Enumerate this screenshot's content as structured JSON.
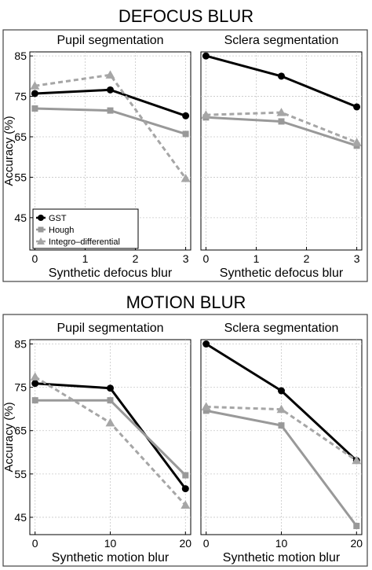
{
  "colors": {
    "gst": "#000000",
    "hough": "#999999",
    "integro": "#a6a6a6",
    "grid": "#c8c8c8",
    "frame": "#000000"
  },
  "legend": {
    "placement": "lower-left of the first panel",
    "entries": [
      "GST",
      "Hough",
      "Integro–differential"
    ]
  },
  "chart_data": [
    {
      "type": "line",
      "section_title": "DEFOCUS BLUR",
      "title": "Pupil segmentation",
      "xlabel": "Synthetic defocus blur",
      "ylabel": "Accuracy (%)",
      "x": [
        0,
        1.5,
        3
      ],
      "xticks": [
        "0",
        "1",
        "2",
        "3"
      ],
      "yticks": [
        "45",
        "55",
        "65",
        "75",
        "85"
      ],
      "xlim": [
        -0.1,
        3.1
      ],
      "ylim": [
        37,
        86
      ],
      "grid": true,
      "series": [
        {
          "name": "GST",
          "values": [
            75.7,
            76.6,
            70.2
          ],
          "marker": "circle",
          "dashed": false
        },
        {
          "name": "Hough",
          "values": [
            72,
            71.5,
            65.7
          ],
          "marker": "square",
          "dashed": false
        },
        {
          "name": "Integro–differential",
          "values": [
            77.6,
            80.3,
            54.7
          ],
          "marker": "triangle",
          "dashed": true
        }
      ]
    },
    {
      "type": "line",
      "section_title": "DEFOCUS BLUR",
      "title": "Sclera segmentation",
      "xlabel": "Synthetic defocus blur",
      "ylabel": "",
      "x": [
        0,
        1.5,
        3
      ],
      "xticks": [
        "0",
        "1",
        "2",
        "3"
      ],
      "yticks": [],
      "xlim": [
        -0.1,
        3.1
      ],
      "ylim": [
        37,
        86
      ],
      "grid": true,
      "series": [
        {
          "name": "GST",
          "values": [
            85,
            80,
            72.4
          ],
          "marker": "circle",
          "dashed": false
        },
        {
          "name": "Hough",
          "values": [
            69.8,
            68.8,
            62.8
          ],
          "marker": "square",
          "dashed": false
        },
        {
          "name": "Integro–differential",
          "values": [
            70.4,
            71.0,
            63.6
          ],
          "marker": "triangle",
          "dashed": true
        }
      ]
    },
    {
      "type": "line",
      "section_title": "MOTION BLUR",
      "title": "Pupil segmentation",
      "xlabel": "Synthetic motion blur",
      "ylabel": "Accuracy (%)",
      "x": [
        0,
        10,
        20
      ],
      "xticks": [
        "0",
        "10",
        "20"
      ],
      "yticks": [
        "45",
        "55",
        "65",
        "75",
        "85"
      ],
      "xlim": [
        -0.7,
        20.7
      ],
      "ylim": [
        41,
        86
      ],
      "grid": true,
      "series": [
        {
          "name": "GST",
          "values": [
            75.9,
            74.8,
            51.6
          ],
          "marker": "circle",
          "dashed": false
        },
        {
          "name": "Hough",
          "values": [
            72,
            72,
            54.7
          ],
          "marker": "square",
          "dashed": false
        },
        {
          "name": "Integro–differential",
          "values": [
            77.4,
            66.8,
            47.8
          ],
          "marker": "triangle",
          "dashed": true
        }
      ]
    },
    {
      "type": "line",
      "section_title": "MOTION BLUR",
      "title": "Sclera segmentation",
      "xlabel": "Synthetic motion blur",
      "ylabel": "",
      "x": [
        0,
        10,
        20
      ],
      "xticks": [
        "0",
        "10",
        "20"
      ],
      "yticks": [],
      "xlim": [
        -0.7,
        20.7
      ],
      "ylim": [
        41,
        86
      ],
      "grid": true,
      "series": [
        {
          "name": "GST",
          "values": [
            85,
            74.2,
            58.1
          ],
          "marker": "circle",
          "dashed": false
        },
        {
          "name": "Hough",
          "values": [
            69.6,
            66.2,
            43
          ],
          "marker": "square",
          "dashed": false
        },
        {
          "name": "Integro–differential",
          "values": [
            70.5,
            69.9,
            58.1
          ],
          "marker": "triangle",
          "dashed": true
        }
      ]
    }
  ]
}
